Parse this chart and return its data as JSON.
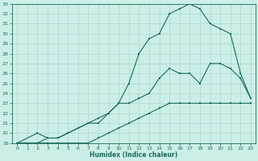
{
  "xlabel": "Humidex (Indice chaleur)",
  "bg_color": "#cceee8",
  "line_color": "#1a6b5a",
  "grid_color": "#a8d8d0",
  "xlim": [
    -0.5,
    23.5
  ],
  "ylim": [
    19,
    33
  ],
  "xticks": [
    0,
    1,
    2,
    3,
    4,
    5,
    6,
    7,
    8,
    9,
    10,
    11,
    12,
    13,
    14,
    15,
    16,
    17,
    18,
    19,
    20,
    21,
    22,
    23
  ],
  "yticks": [
    19,
    20,
    21,
    22,
    23,
    24,
    25,
    26,
    27,
    28,
    29,
    30,
    31,
    32,
    33
  ],
  "line1_x": [
    0,
    1,
    2,
    3,
    4,
    5,
    6,
    7,
    8,
    9,
    10,
    11,
    12,
    13,
    14,
    15,
    16,
    17,
    18,
    19,
    20,
    21,
    22,
    23
  ],
  "line1_y": [
    19,
    19,
    19,
    19,
    19,
    19,
    19,
    19,
    19.5,
    20,
    20.5,
    21,
    21.5,
    22,
    22.5,
    23,
    23,
    23,
    23,
    23,
    23,
    23,
    23,
    23
  ],
  "line2_x": [
    0,
    2,
    3,
    4,
    5,
    6,
    7,
    8,
    9,
    10,
    11,
    12,
    13,
    14,
    15,
    16,
    17,
    18,
    19,
    20,
    21,
    22,
    23
  ],
  "line2_y": [
    19,
    19,
    19.5,
    19.5,
    20,
    20.5,
    21,
    21.5,
    22,
    23,
    23,
    23.5,
    24,
    25.5,
    26.5,
    26,
    26,
    25,
    27,
    27,
    26.5,
    25.5,
    23.5
  ],
  "line3_x": [
    0,
    2,
    3,
    4,
    5,
    6,
    7,
    8,
    9,
    10,
    11,
    12,
    13,
    14,
    15,
    16,
    17,
    18,
    19,
    20,
    21,
    22,
    23
  ],
  "line3_y": [
    19,
    20,
    19.5,
    19.5,
    20,
    20.5,
    21,
    21,
    22,
    23,
    25,
    28,
    29.5,
    30,
    32,
    32.5,
    33,
    32.5,
    31,
    30.5,
    30,
    26,
    23.5
  ]
}
